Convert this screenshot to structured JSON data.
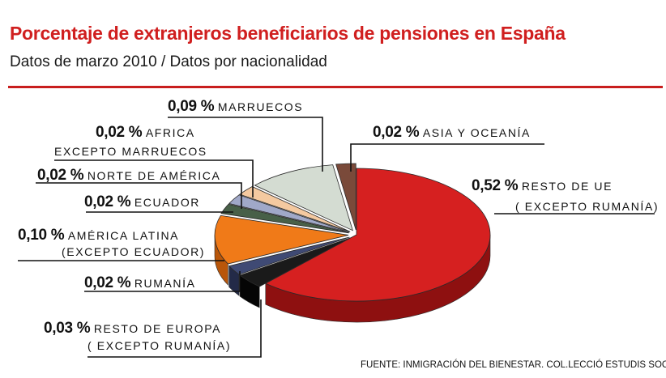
{
  "header": {
    "title": "Porcentaje de extranjeros beneficiarios de pensiones en España",
    "subtitle": "Datos de marzo 2010  / Datos por  nacionalidad"
  },
  "source": "FUENTE: INMIGRACIÓN DEL BIENESTAR. COL.LECCIÓ ESTUDIS SOCIALS",
  "colors": {
    "title": "#d01f1f",
    "rule": "#c81e1e",
    "resto_ue": "#d62020",
    "america_latina": "#f07a18",
    "marruecos": "#d4dcd2"
  },
  "chart_data": {
    "type": "pie",
    "style": "3d-exploded",
    "title": "Porcentaje de extranjeros beneficiarios de pensiones en España",
    "subtitle": "Datos de marzo 2010  / Datos por  nacionalidad",
    "series": [
      {
        "key": "resto_ue",
        "value": 0.52,
        "label_pct": "0,52 %",
        "label": "RESTO DE UE",
        "label2": "( EXCEPTO RUMANÍA)",
        "color": "#d62020",
        "side": "#8e1010"
      },
      {
        "key": "resto_europa",
        "value": 0.03,
        "label_pct": "0,03 %",
        "label": "RESTO DE EUROPA",
        "label2": "( EXCEPTO RUMANÍA)",
        "color": "#1a1a1a",
        "side": "#050505"
      },
      {
        "key": "rumania",
        "value": 0.02,
        "label_pct": "0,02 %",
        "label": "RUMANÍA",
        "label2": "",
        "color": "#3f4a74",
        "side": "#232a48"
      },
      {
        "key": "america_latina",
        "value": 0.1,
        "label_pct": "0,10 %",
        "label": "AMÉRICA LATINA",
        "label2": "(EXCEPTO ECUADOR)",
        "color": "#f07a18",
        "side": "#b9560a"
      },
      {
        "key": "ecuador",
        "value": 0.02,
        "label_pct": "0,02 %",
        "label": "ECUADOR",
        "label2": "",
        "color": "#486048",
        "side": "#2d3d2d"
      },
      {
        "key": "norte_america",
        "value": 0.02,
        "label_pct": "0,02 %",
        "label": "NORTE DE AMÉRICA",
        "label2": "",
        "color": "#a0a8c8",
        "side": "#6c738f"
      },
      {
        "key": "africa",
        "value": 0.02,
        "label_pct": "0,02 %",
        "label": "AFRICA",
        "label2": "EXCEPTO MARRUECOS",
        "color": "#f4c9a0",
        "side": "#bf9670"
      },
      {
        "key": "marruecos",
        "value": 0.09,
        "label_pct": "0,09 %",
        "label": "MARRUECOS",
        "label2": "",
        "color": "#d4dcd2",
        "side": "#8f978d"
      },
      {
        "key": "asia_oceania",
        "value": 0.02,
        "label_pct": "0,02 %",
        "label": "ASIA Y OCEANÍA",
        "label2": "",
        "color": "#7a4a3a",
        "side": "#4d2c22"
      }
    ],
    "legend": "callout-labels"
  }
}
